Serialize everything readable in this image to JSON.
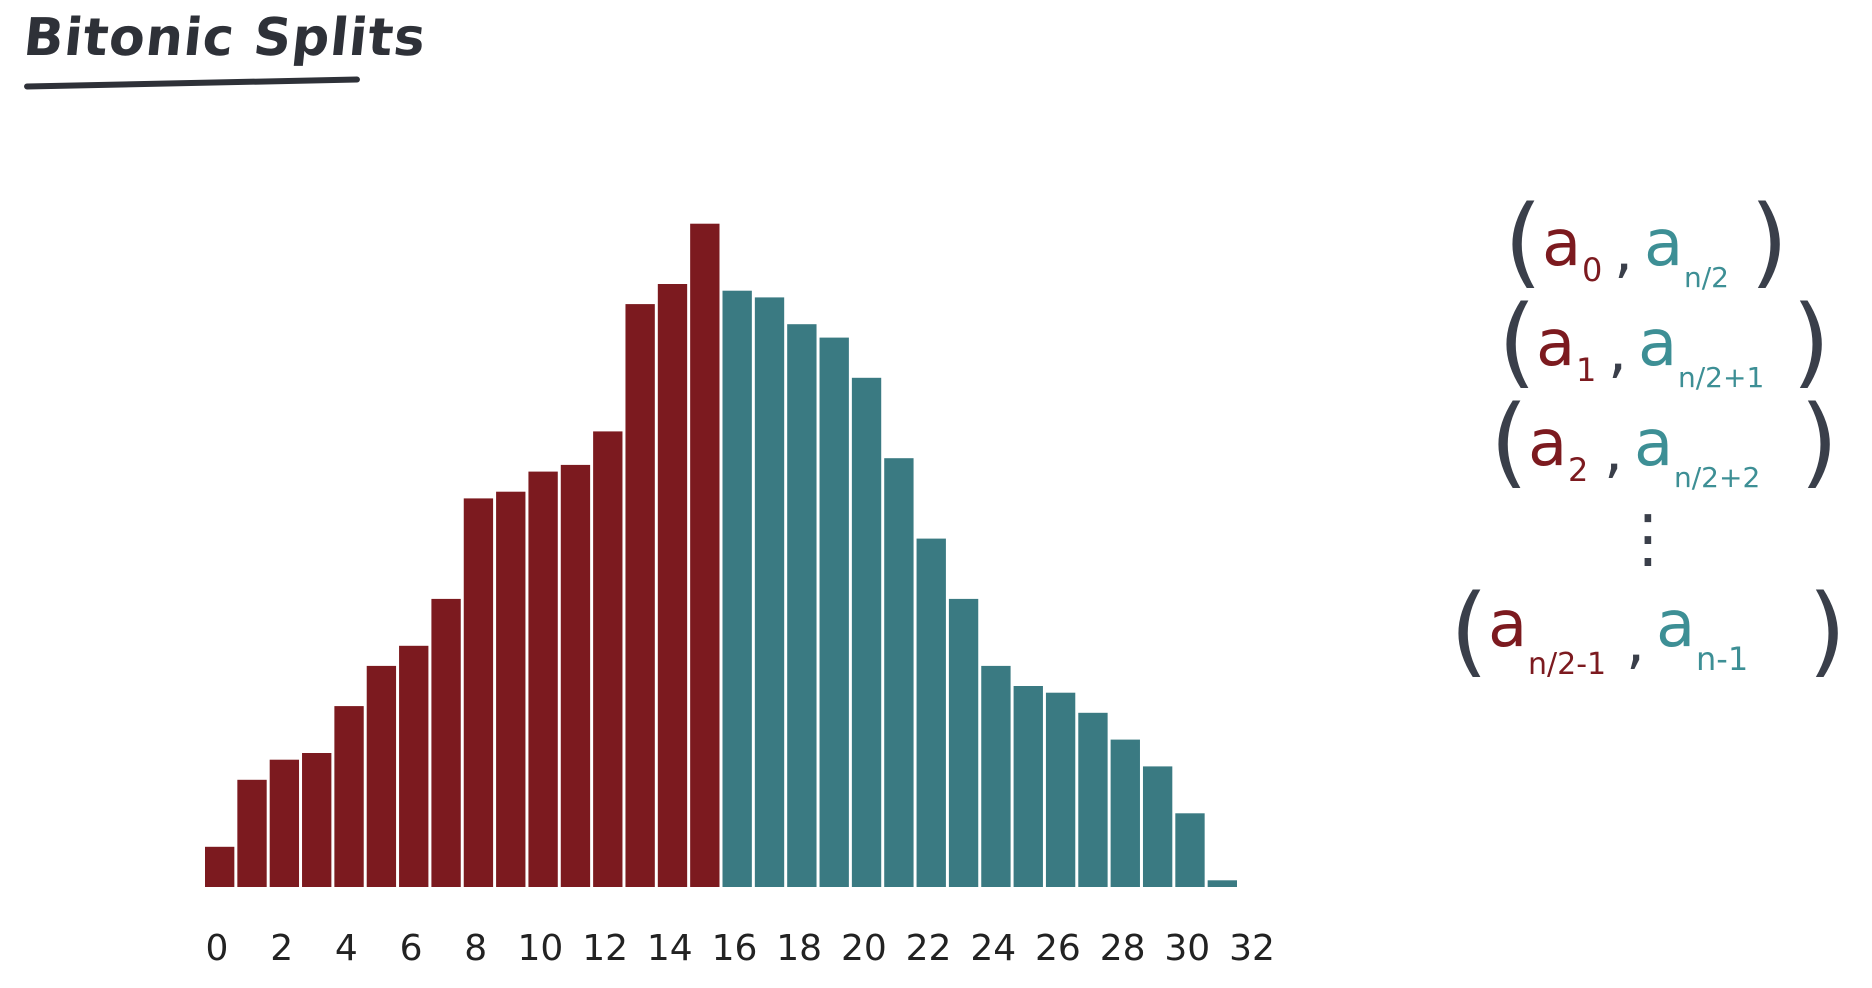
{
  "title": "Bitonic Splits",
  "colors": {
    "first_half": "#7c1a1f",
    "second_half": "#3a7a82",
    "ink": "#2e3138"
  },
  "chart_data": {
    "type": "bar",
    "x": [
      0,
      1,
      2,
      3,
      4,
      5,
      6,
      7,
      8,
      9,
      10,
      11,
      12,
      13,
      14,
      15,
      16,
      17,
      18,
      19,
      20,
      21,
      22,
      23,
      24,
      25,
      26,
      27,
      28,
      29,
      30,
      31
    ],
    "values": [
      6,
      16,
      19,
      20,
      27,
      33,
      36,
      43,
      58,
      59,
      62,
      63,
      68,
      87,
      90,
      99,
      89,
      88,
      84,
      82,
      76,
      64,
      52,
      43,
      33,
      30,
      29,
      26,
      22,
      18,
      11,
      1
    ],
    "x_ticks": [
      "0",
      "2",
      "4",
      "6",
      "8",
      "10",
      "12",
      "14",
      "16",
      "18",
      "20",
      "22",
      "24",
      "26",
      "28",
      "30",
      "32"
    ],
    "xlim": [
      0,
      32
    ],
    "ylim": [
      0,
      100
    ],
    "title": "",
    "xlabel": "",
    "ylabel": "",
    "grid": false,
    "split_index": 16
  },
  "formulas": [
    {
      "red": "a",
      "red_sub": "0",
      "teal": "a",
      "teal_sub": "n/2"
    },
    {
      "red": "a",
      "red_sub": "1",
      "teal": "a",
      "teal_sub": "n/2+1"
    },
    {
      "red": "a",
      "red_sub": "2",
      "teal": "a",
      "teal_sub": "n/2+2"
    },
    {
      "red": "a",
      "red_sub": "n/2-1",
      "teal": "a",
      "teal_sub": "n-1"
    }
  ],
  "ellipsis": "⋮"
}
